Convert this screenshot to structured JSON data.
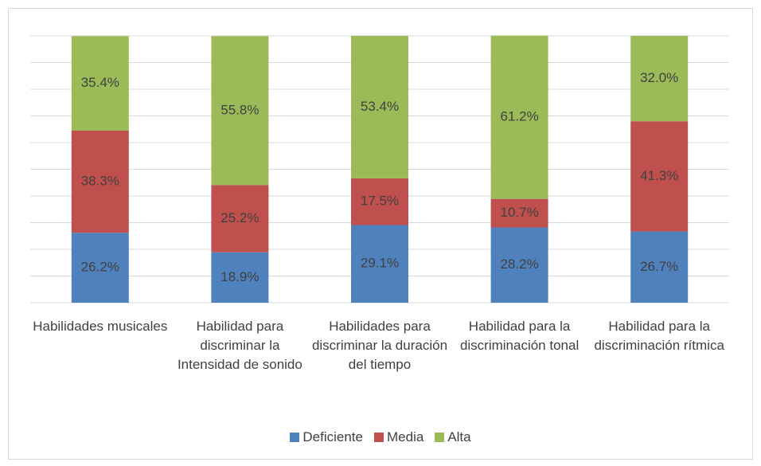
{
  "chart_data": {
    "type": "stacked_bar",
    "categories": [
      "Habilidades musicales",
      "Habilidad para discriminar la Intensidad de sonido",
      "Habilidades para discriminar la duración del tiempo",
      "Habilidad para la discriminación tonal",
      "Habilidad para la discriminación rítmica"
    ],
    "series": [
      {
        "name": "Deficiente",
        "color": "#4f81bd",
        "values": [
          26.2,
          18.9,
          29.1,
          28.2,
          26.7
        ],
        "value_labels": [
          "26.2%",
          "18.9%",
          "29.1%",
          "28.2%",
          "26.7%"
        ]
      },
      {
        "name": "Media",
        "color": "#c0504d",
        "values": [
          38.3,
          25.2,
          17.5,
          10.7,
          41.3
        ],
        "value_labels": [
          "38.3%",
          "25.2%",
          "17.5%",
          "10.7%",
          "41.3%"
        ]
      },
      {
        "name": "Alta",
        "color": "#9bbb59",
        "values": [
          35.4,
          55.8,
          53.4,
          61.2,
          32.0
        ],
        "value_labels": [
          "35.4%",
          "55.8%",
          "53.4%",
          "61.2%",
          "32.0%"
        ]
      }
    ],
    "ylim": [
      0,
      100
    ],
    "yticks": [
      0,
      10,
      20,
      30,
      40,
      50,
      60,
      70,
      80,
      90,
      100
    ],
    "grid": true,
    "legend": "bottom"
  }
}
